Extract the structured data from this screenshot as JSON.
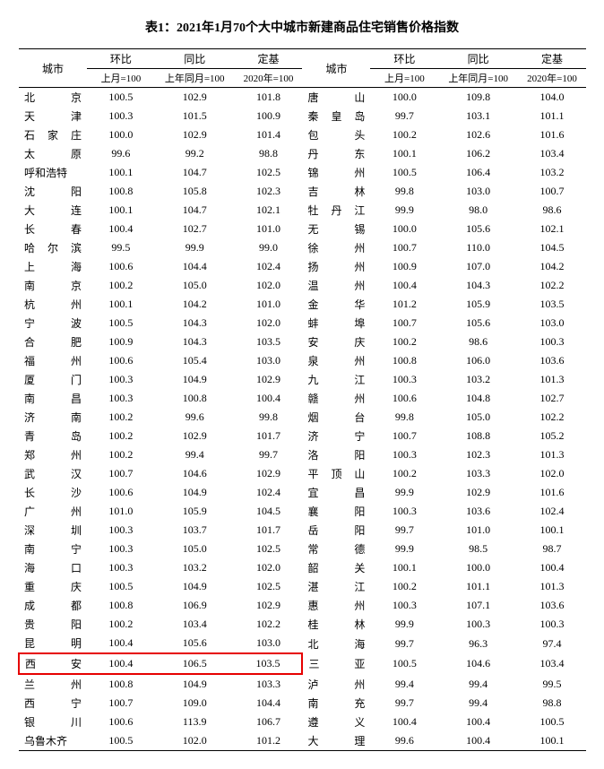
{
  "title": "表1：2021年1月70个大中城市新建商品住宅销售价格指数",
  "headers": {
    "city": "城市",
    "mom": "环比",
    "yoy": "同比",
    "base": "定基",
    "mom_sub": "上月=100",
    "yoy_sub": "上年同月=100",
    "base_sub": "2020年=100"
  },
  "highlight_city": "西安",
  "highlight_color": "#e60000",
  "background_color": "#ffffff",
  "text_color": "#000000",
  "font_family": "SimSun",
  "rows": [
    {
      "c1": "北京",
      "m1": "100.5",
      "y1": "102.9",
      "b1": "101.8",
      "c2": "唐山",
      "m2": "100.0",
      "y2": "109.8",
      "b2": "104.0"
    },
    {
      "c1": "天津",
      "m1": "100.3",
      "y1": "101.5",
      "b1": "100.9",
      "c2": "秦皇岛",
      "m2": "99.7",
      "y2": "103.1",
      "b2": "101.1"
    },
    {
      "c1": "石家庄",
      "m1": "100.0",
      "y1": "102.9",
      "b1": "101.4",
      "c2": "包头",
      "m2": "100.2",
      "y2": "102.6",
      "b2": "101.6"
    },
    {
      "c1": "太原",
      "m1": "99.6",
      "y1": "99.2",
      "b1": "98.8",
      "c2": "丹东",
      "m2": "100.1",
      "y2": "106.2",
      "b2": "103.4"
    },
    {
      "c1": "呼和浩特",
      "m1": "100.1",
      "y1": "104.7",
      "b1": "102.5",
      "c2": "锦州",
      "m2": "100.5",
      "y2": "106.4",
      "b2": "103.2"
    },
    {
      "c1": "沈阳",
      "m1": "100.8",
      "y1": "105.8",
      "b1": "102.3",
      "c2": "吉林",
      "m2": "99.8",
      "y2": "103.0",
      "b2": "100.7"
    },
    {
      "c1": "大连",
      "m1": "100.1",
      "y1": "104.7",
      "b1": "102.1",
      "c2": "牡丹江",
      "m2": "99.9",
      "y2": "98.0",
      "b2": "98.6"
    },
    {
      "c1": "长春",
      "m1": "100.4",
      "y1": "102.7",
      "b1": "101.0",
      "c2": "无锡",
      "m2": "100.0",
      "y2": "105.6",
      "b2": "102.1"
    },
    {
      "c1": "哈尔滨",
      "m1": "99.5",
      "y1": "99.9",
      "b1": "99.0",
      "c2": "徐州",
      "m2": "100.7",
      "y2": "110.0",
      "b2": "104.5"
    },
    {
      "c1": "上海",
      "m1": "100.6",
      "y1": "104.4",
      "b1": "102.4",
      "c2": "扬州",
      "m2": "100.9",
      "y2": "107.0",
      "b2": "104.2"
    },
    {
      "c1": "南京",
      "m1": "100.2",
      "y1": "105.0",
      "b1": "102.0",
      "c2": "温州",
      "m2": "100.4",
      "y2": "104.3",
      "b2": "102.2"
    },
    {
      "c1": "杭州",
      "m1": "100.1",
      "y1": "104.2",
      "b1": "101.0",
      "c2": "金华",
      "m2": "101.2",
      "y2": "105.9",
      "b2": "103.5"
    },
    {
      "c1": "宁波",
      "m1": "100.5",
      "y1": "104.3",
      "b1": "102.0",
      "c2": "蚌埠",
      "m2": "100.7",
      "y2": "105.6",
      "b2": "103.0"
    },
    {
      "c1": "合肥",
      "m1": "100.9",
      "y1": "104.3",
      "b1": "103.5",
      "c2": "安庆",
      "m2": "100.2",
      "y2": "98.6",
      "b2": "100.3"
    },
    {
      "c1": "福州",
      "m1": "100.6",
      "y1": "105.4",
      "b1": "103.0",
      "c2": "泉州",
      "m2": "100.8",
      "y2": "106.0",
      "b2": "103.6"
    },
    {
      "c1": "厦门",
      "m1": "100.3",
      "y1": "104.9",
      "b1": "102.9",
      "c2": "九江",
      "m2": "100.3",
      "y2": "103.2",
      "b2": "101.3"
    },
    {
      "c1": "南昌",
      "m1": "100.3",
      "y1": "100.8",
      "b1": "100.4",
      "c2": "赣州",
      "m2": "100.6",
      "y2": "104.8",
      "b2": "102.7"
    },
    {
      "c1": "济南",
      "m1": "100.2",
      "y1": "99.6",
      "b1": "99.8",
      "c2": "烟台",
      "m2": "99.8",
      "y2": "105.0",
      "b2": "102.2"
    },
    {
      "c1": "青岛",
      "m1": "100.2",
      "y1": "102.9",
      "b1": "101.7",
      "c2": "济宁",
      "m2": "100.7",
      "y2": "108.8",
      "b2": "105.2"
    },
    {
      "c1": "郑州",
      "m1": "100.2",
      "y1": "99.4",
      "b1": "99.7",
      "c2": "洛阳",
      "m2": "100.3",
      "y2": "102.3",
      "b2": "101.3"
    },
    {
      "c1": "武汉",
      "m1": "100.7",
      "y1": "104.6",
      "b1": "102.9",
      "c2": "平顶山",
      "m2": "100.2",
      "y2": "103.3",
      "b2": "102.0"
    },
    {
      "c1": "长沙",
      "m1": "100.6",
      "y1": "104.9",
      "b1": "102.4",
      "c2": "宜昌",
      "m2": "99.9",
      "y2": "102.9",
      "b2": "101.6"
    },
    {
      "c1": "广州",
      "m1": "101.0",
      "y1": "105.9",
      "b1": "104.5",
      "c2": "襄阳",
      "m2": "100.3",
      "y2": "103.6",
      "b2": "102.4"
    },
    {
      "c1": "深圳",
      "m1": "100.3",
      "y1": "103.7",
      "b1": "101.7",
      "c2": "岳阳",
      "m2": "99.7",
      "y2": "101.0",
      "b2": "100.1"
    },
    {
      "c1": "南宁",
      "m1": "100.3",
      "y1": "105.0",
      "b1": "102.5",
      "c2": "常德",
      "m2": "99.9",
      "y2": "98.5",
      "b2": "98.7"
    },
    {
      "c1": "海口",
      "m1": "100.3",
      "y1": "103.2",
      "b1": "102.0",
      "c2": "韶关",
      "m2": "100.1",
      "y2": "100.0",
      "b2": "100.4"
    },
    {
      "c1": "重庆",
      "m1": "100.5",
      "y1": "104.9",
      "b1": "102.5",
      "c2": "湛江",
      "m2": "100.2",
      "y2": "101.1",
      "b2": "101.3"
    },
    {
      "c1": "成都",
      "m1": "100.8",
      "y1": "106.9",
      "b1": "102.9",
      "c2": "惠州",
      "m2": "100.3",
      "y2": "107.1",
      "b2": "103.6"
    },
    {
      "c1": "贵阳",
      "m1": "100.2",
      "y1": "103.4",
      "b1": "102.2",
      "c2": "桂林",
      "m2": "99.9",
      "y2": "100.3",
      "b2": "100.3"
    },
    {
      "c1": "昆明",
      "m1": "100.4",
      "y1": "105.6",
      "b1": "103.0",
      "c2": "北海",
      "m2": "99.7",
      "y2": "96.3",
      "b2": "97.4"
    },
    {
      "c1": "西安",
      "m1": "100.4",
      "y1": "106.5",
      "b1": "103.5",
      "c2": "三亚",
      "m2": "100.5",
      "y2": "104.6",
      "b2": "103.4"
    },
    {
      "c1": "兰州",
      "m1": "100.8",
      "y1": "104.9",
      "b1": "103.3",
      "c2": "泸州",
      "m2": "99.4",
      "y2": "99.4",
      "b2": "99.5"
    },
    {
      "c1": "西宁",
      "m1": "100.7",
      "y1": "109.0",
      "b1": "104.4",
      "c2": "南充",
      "m2": "99.7",
      "y2": "99.4",
      "b2": "98.8"
    },
    {
      "c1": "银川",
      "m1": "100.6",
      "y1": "113.9",
      "b1": "106.7",
      "c2": "遵义",
      "m2": "100.4",
      "y2": "100.4",
      "b2": "100.5"
    },
    {
      "c1": "乌鲁木齐",
      "m1": "100.5",
      "y1": "102.0",
      "b1": "101.2",
      "c2": "大理",
      "m2": "99.6",
      "y2": "100.4",
      "b2": "100.1"
    }
  ]
}
